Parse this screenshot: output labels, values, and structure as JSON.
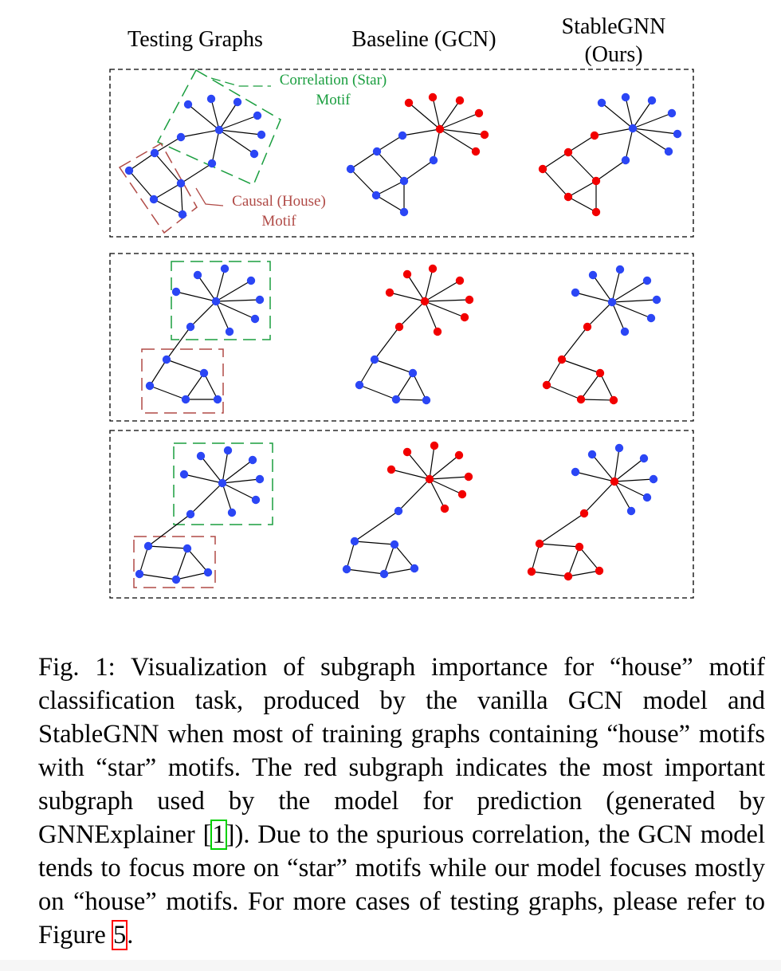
{
  "figure": {
    "headers": {
      "testing": "Testing Graphs",
      "baseline": "Baseline (GCN)",
      "stable_line1": "StableGNN",
      "stable_line2": "(Ours)"
    },
    "annotations": {
      "correlation_line1": "Correlation (Star)",
      "correlation_line2": "Motif",
      "causal_line1": "Causal (House)",
      "causal_line2": "Motif"
    },
    "colors": {
      "node_blue": "#2b46f5",
      "node_red": "#f20000",
      "star_box": "#1a9e3f",
      "house_box": "#b04a46",
      "edge": "#000000"
    }
  },
  "caption": {
    "label": "Fig. 1:",
    "text_part1": "Visualization of subgraph importance for “house” motif classification task, produced by the vanilla GCN model and StableGNN when most of training graphs containing “house” motifs with “star” motifs. The red subgraph indicates the most important subgraph used by the model for prediction (generated by GNNExplainer [",
    "ref1": "1",
    "text_part2": "]). Due to the spurious correlation, the GCN model tends to focus more on “star” motifs while our model focuses mostly on “house” motifs. For more cases of testing graphs, please refer to Figure ",
    "ref2": "5",
    "text_part3": "."
  }
}
